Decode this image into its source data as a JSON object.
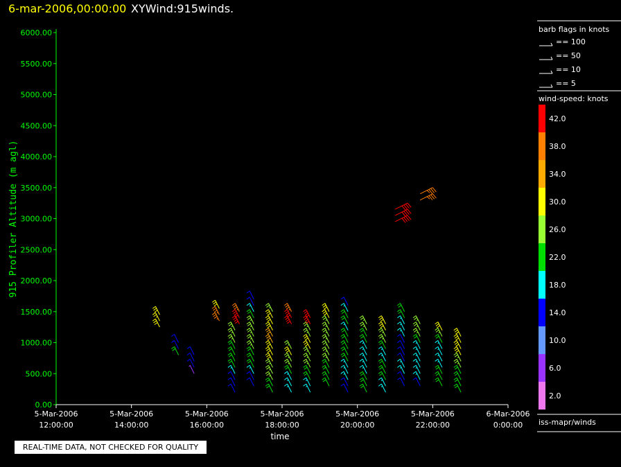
{
  "header": {
    "date": "6-mar-2006,00:00:00",
    "title": "XYWind:915winds."
  },
  "notice": "REAL-TIME DATA, NOT CHECKED FOR QUALITY",
  "legend": {
    "flags_title": "barb flags in knots",
    "flags": [
      {
        "label": "== 100",
        "knots": 100
      },
      {
        "label": "== 50",
        "knots": 50
      },
      {
        "label": "== 10",
        "knots": 10
      },
      {
        "label": "== 5",
        "knots": 5
      }
    ],
    "speed_title": "wind-speed: knots",
    "speed_scale": [
      {
        "label": "42.0",
        "color": "#ff0000"
      },
      {
        "label": "38.0",
        "color": "#ff7f00"
      },
      {
        "label": "34.0",
        "color": "#ffaa00"
      },
      {
        "label": "30.0",
        "color": "#ffff00"
      },
      {
        "label": "26.0",
        "color": "#99ff33"
      },
      {
        "label": "22.0",
        "color": "#00dd00"
      },
      {
        "label": "18.0",
        "color": "#00ffff"
      },
      {
        "label": "14.0",
        "color": "#0000ff"
      },
      {
        "label": "10.0",
        "color": "#6699ff"
      },
      {
        "label": "6.0",
        "color": "#9933ff"
      },
      {
        "label": "2.0",
        "color": "#ee77ee"
      }
    ],
    "source": "iss-mapr/winds"
  },
  "chart_data": {
    "type": "scatter",
    "subtype": "wind-barb time-height",
    "title": "XYWind:915winds.",
    "xlabel": "time",
    "ylabel": "915 Profiler Altitude (m agl)",
    "ylim": [
      0,
      6000
    ],
    "xlim": [
      "2006-03-05 12:00",
      "2006-03-06 00:00"
    ],
    "y_ticks": [
      "0.00",
      "500.00",
      "1000.00",
      "1500.00",
      "2000.00",
      "2500.00",
      "3000.00",
      "3500.00",
      "4000.00",
      "4500.00",
      "5000.00",
      "5500.00",
      "6000.00"
    ],
    "x_ticks": [
      {
        "date": "5-Mar-2006",
        "time": "12:00:00"
      },
      {
        "date": "5-Mar-2006",
        "time": "14:00:00"
      },
      {
        "date": "5-Mar-2006",
        "time": "16:00:00"
      },
      {
        "date": "5-Mar-2006",
        "time": "18:00:00"
      },
      {
        "date": "5-Mar-2006",
        "time": "20:00:00"
      },
      {
        "date": "5-Mar-2006",
        "time": "22:00:00"
      },
      {
        "date": "6-Mar-2006",
        "time": "0:00:00"
      }
    ],
    "grid": false,
    "profiles": [
      {
        "time": "14:45",
        "speeds": [
          [
            1250,
            30
          ],
          [
            1350,
            28
          ],
          [
            1450,
            30
          ]
        ]
      },
      {
        "time": "15:15",
        "speeds": [
          [
            800,
            22
          ],
          [
            900,
            14
          ],
          [
            1000,
            14
          ]
        ]
      },
      {
        "time": "15:40",
        "speeds": [
          [
            500,
            6
          ],
          [
            600,
            14
          ],
          [
            700,
            14
          ],
          [
            800,
            14
          ]
        ]
      },
      {
        "time": "16:20",
        "speeds": [
          [
            1350,
            38
          ],
          [
            1450,
            36
          ],
          [
            1550,
            30
          ]
        ]
      },
      {
        "time": "16:45",
        "speeds": [
          [
            200,
            14
          ],
          [
            300,
            14
          ],
          [
            400,
            14
          ],
          [
            500,
            18
          ],
          [
            600,
            22
          ],
          [
            700,
            22
          ],
          [
            800,
            22
          ],
          [
            900,
            22
          ],
          [
            1000,
            26
          ],
          [
            1100,
            26
          ],
          [
            1200,
            26
          ]
        ]
      },
      {
        "time": "16:52",
        "speeds": [
          [
            1300,
            42
          ],
          [
            1400,
            42
          ],
          [
            1500,
            38
          ]
        ]
      },
      {
        "time": "17:15",
        "speeds": [
          [
            300,
            14
          ],
          [
            400,
            14
          ],
          [
            500,
            18
          ],
          [
            600,
            22
          ],
          [
            700,
            22
          ],
          [
            800,
            22
          ],
          [
            900,
            26
          ],
          [
            1000,
            26
          ],
          [
            1100,
            26
          ],
          [
            1200,
            26
          ],
          [
            1300,
            26
          ],
          [
            1400,
            22
          ],
          [
            1500,
            18
          ],
          [
            1600,
            14
          ],
          [
            1700,
            14
          ]
        ]
      },
      {
        "time": "17:45",
        "speeds": [
          [
            200,
            22
          ],
          [
            300,
            22
          ],
          [
            400,
            26
          ],
          [
            500,
            26
          ],
          [
            600,
            26
          ],
          [
            700,
            30
          ],
          [
            800,
            30
          ],
          [
            900,
            30
          ],
          [
            1000,
            34
          ],
          [
            1100,
            34
          ],
          [
            1200,
            30
          ],
          [
            1300,
            30
          ],
          [
            1400,
            30
          ],
          [
            1500,
            26
          ]
        ]
      },
      {
        "time": "18:15",
        "speeds": [
          [
            200,
            18
          ],
          [
            300,
            18
          ],
          [
            400,
            18
          ],
          [
            500,
            22
          ],
          [
            600,
            26
          ],
          [
            700,
            26
          ],
          [
            800,
            30
          ],
          [
            900,
            26
          ]
        ]
      },
      {
        "time": "18:15b",
        "speeds": [
          [
            1300,
            42
          ],
          [
            1400,
            42
          ],
          [
            1500,
            38
          ]
        ]
      },
      {
        "time": "18:45",
        "speeds": [
          [
            200,
            18
          ],
          [
            300,
            18
          ],
          [
            400,
            22
          ],
          [
            500,
            22
          ],
          [
            600,
            26
          ],
          [
            700,
            26
          ],
          [
            800,
            26
          ],
          [
            900,
            30
          ],
          [
            1000,
            30
          ],
          [
            1100,
            26
          ],
          [
            1200,
            26
          ],
          [
            1300,
            42
          ],
          [
            1400,
            42
          ]
        ]
      },
      {
        "time": "19:15",
        "speeds": [
          [
            300,
            22
          ],
          [
            400,
            22
          ],
          [
            500,
            22
          ],
          [
            600,
            22
          ],
          [
            700,
            26
          ],
          [
            800,
            26
          ],
          [
            900,
            26
          ],
          [
            1000,
            26
          ],
          [
            1100,
            26
          ],
          [
            1200,
            26
          ],
          [
            1300,
            26
          ],
          [
            1400,
            30
          ],
          [
            1500,
            30
          ]
        ]
      },
      {
        "time": "19:45",
        "speeds": [
          [
            200,
            14
          ],
          [
            300,
            14
          ],
          [
            400,
            18
          ],
          [
            500,
            18
          ],
          [
            600,
            18
          ],
          [
            700,
            22
          ],
          [
            800,
            22
          ],
          [
            900,
            22
          ],
          [
            1000,
            22
          ],
          [
            1100,
            22
          ],
          [
            1200,
            18
          ],
          [
            1300,
            22
          ],
          [
            1400,
            22
          ],
          [
            1500,
            18
          ],
          [
            1600,
            14
          ]
        ]
      },
      {
        "time": "20:15",
        "speeds": [
          [
            200,
            22
          ],
          [
            300,
            22
          ],
          [
            400,
            22
          ],
          [
            500,
            18
          ],
          [
            600,
            18
          ],
          [
            700,
            18
          ],
          [
            800,
            18
          ],
          [
            900,
            18
          ],
          [
            1000,
            22
          ],
          [
            1100,
            22
          ],
          [
            1200,
            26
          ],
          [
            1300,
            26
          ]
        ]
      },
      {
        "time": "20:45",
        "speeds": [
          [
            200,
            18
          ],
          [
            300,
            18
          ],
          [
            400,
            22
          ],
          [
            500,
            22
          ],
          [
            600,
            22
          ],
          [
            700,
            18
          ],
          [
            800,
            18
          ],
          [
            900,
            22
          ],
          [
            1000,
            26
          ],
          [
            1100,
            26
          ],
          [
            1200,
            30
          ],
          [
            1300,
            30
          ]
        ]
      },
      {
        "time": "21:15",
        "speeds": [
          [
            300,
            14
          ],
          [
            400,
            14
          ],
          [
            500,
            18
          ],
          [
            600,
            18
          ],
          [
            700,
            14
          ],
          [
            800,
            14
          ],
          [
            900,
            14
          ],
          [
            1000,
            14
          ],
          [
            1100,
            18
          ],
          [
            1200,
            18
          ],
          [
            1300,
            18
          ],
          [
            1400,
            22
          ],
          [
            1500,
            22
          ]
        ]
      },
      {
        "time": "21:40",
        "speeds": [
          [
            300,
            14
          ],
          [
            400,
            18
          ],
          [
            500,
            18
          ],
          [
            600,
            18
          ],
          [
            700,
            18
          ],
          [
            800,
            18
          ],
          [
            900,
            18
          ],
          [
            1000,
            22
          ],
          [
            1100,
            26
          ],
          [
            1200,
            26
          ],
          [
            1300,
            26
          ]
        ]
      },
      {
        "time": "22:15",
        "speeds": [
          [
            300,
            22
          ],
          [
            400,
            22
          ],
          [
            500,
            22
          ],
          [
            600,
            18
          ],
          [
            700,
            18
          ],
          [
            800,
            18
          ],
          [
            900,
            18
          ],
          [
            1000,
            22
          ],
          [
            1100,
            26
          ],
          [
            1200,
            30
          ]
        ]
      },
      {
        "time": "22:45",
        "speeds": [
          [
            200,
            22
          ],
          [
            300,
            22
          ],
          [
            400,
            22
          ],
          [
            500,
            22
          ],
          [
            600,
            26
          ],
          [
            700,
            26
          ],
          [
            800,
            30
          ],
          [
            900,
            30
          ],
          [
            1000,
            30
          ],
          [
            1100,
            30
          ]
        ]
      },
      {
        "time": "21:00",
        "speeds": [
          [
            2950,
            42
          ],
          [
            3050,
            42
          ],
          [
            3150,
            42
          ]
        ]
      },
      {
        "time": "21:40c",
        "speeds": [
          [
            3300,
            38
          ],
          [
            3400,
            38
          ]
        ]
      }
    ]
  }
}
